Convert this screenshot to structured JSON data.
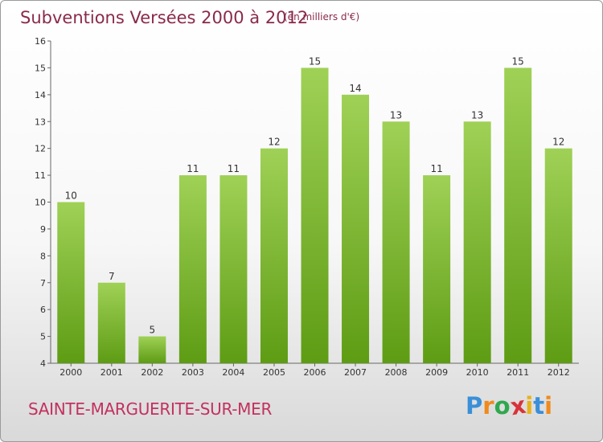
{
  "title": "Subventions Versées 2000 à 2012",
  "unit_note": "(en milliers d'€)",
  "commune": "SAINTE-MARGUERITE-SUR-MER",
  "logo": {
    "text": "Proxiti",
    "letters": [
      {
        "ch": "P",
        "color": "#3a8fd8"
      },
      {
        "ch": "r",
        "color": "#f08a1c"
      },
      {
        "ch": "o",
        "color": "#2fa84f"
      },
      {
        "ch": "x",
        "color": "#d8333a"
      },
      {
        "ch": "i",
        "color": "#e8b21a"
      },
      {
        "ch": "t",
        "color": "#3a8fd8"
      },
      {
        "ch": "i",
        "color": "#f08a1c"
      }
    ]
  },
  "colors": {
    "bar_top": "#9fd156",
    "bar_bottom": "#5e9c14",
    "title": "#8a2a4a",
    "commune": "#c2315f"
  },
  "chart_data": {
    "type": "bar",
    "title": "Subventions Versées 2000 à 2012",
    "xlabel": "",
    "ylabel": "",
    "categories": [
      "2000",
      "2001",
      "2002",
      "2003",
      "2004",
      "2005",
      "2006",
      "2007",
      "2008",
      "2009",
      "2010",
      "2011",
      "2012"
    ],
    "values": [
      10,
      7,
      5,
      11,
      11,
      12,
      15,
      14,
      13,
      11,
      13,
      15,
      12
    ],
    "ylim": [
      4,
      16
    ],
    "yticks": [
      4,
      5,
      6,
      7,
      8,
      9,
      10,
      11,
      12,
      13,
      14,
      15,
      16
    ],
    "grid": false,
    "legend": "none"
  }
}
